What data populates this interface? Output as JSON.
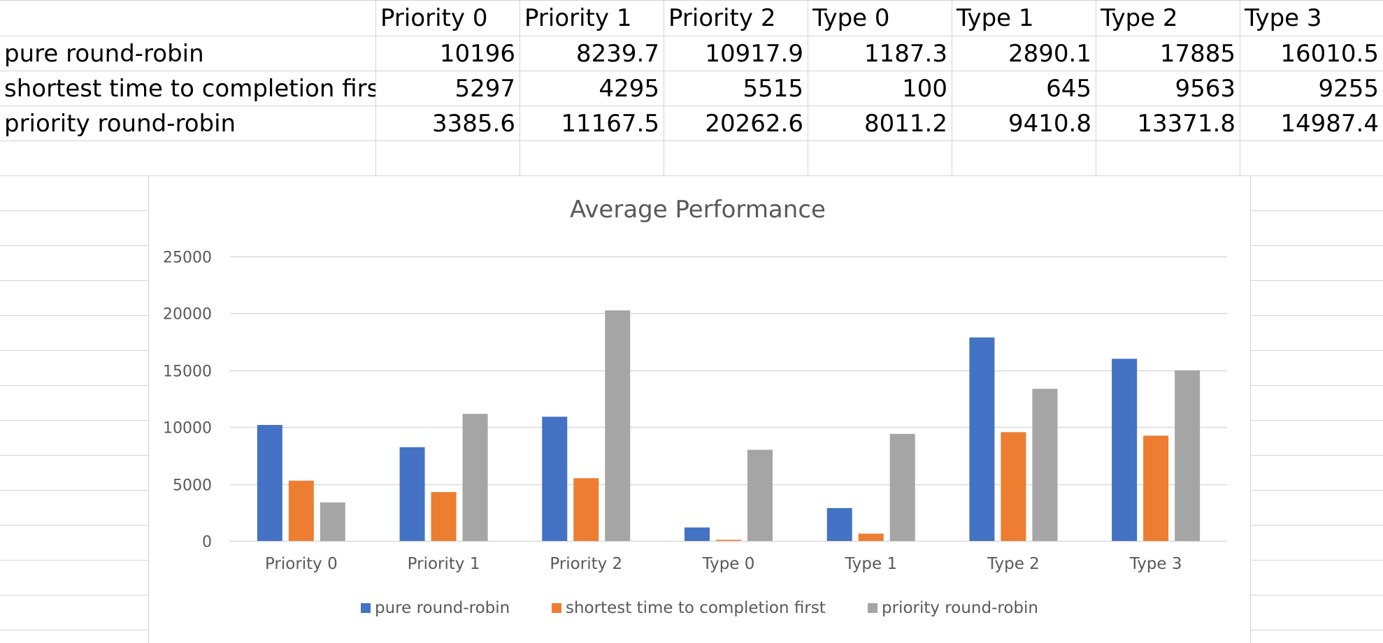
{
  "table": {
    "headers": [
      "Priority 0",
      "Priority 1",
      "Priority 2",
      "Type 0",
      "Type 1",
      "Type 2",
      "Type 3"
    ],
    "rows": [
      {
        "label": "pure round-robin",
        "values": [
          "10196",
          "8239.7",
          "10917.9",
          "1187.3",
          "2890.1",
          "17885",
          "16010.5"
        ]
      },
      {
        "label": "shortest time to completion first",
        "values": [
          "5297",
          "4295",
          "5515",
          "100",
          "645",
          "9563",
          "9255"
        ]
      },
      {
        "label": "priority round-robin",
        "values": [
          "3385.6",
          "11167.5",
          "20262.6",
          "8011.2",
          "9410.8",
          "13371.8",
          "14987.4"
        ]
      }
    ]
  },
  "chart_data": {
    "type": "bar",
    "title": "Average Performance",
    "categories": [
      "Priority 0",
      "Priority 1",
      "Priority 2",
      "Type 0",
      "Type 1",
      "Type 2",
      "Type 3"
    ],
    "series": [
      {
        "name": "pure round-robin",
        "color": "#4472C4",
        "values": [
          10196,
          8239.7,
          10917.9,
          1187.3,
          2890.1,
          17885,
          16010.5
        ]
      },
      {
        "name": "shortest time to completion first",
        "color": "#ED7D31",
        "values": [
          5297,
          4295,
          5515,
          100,
          645,
          9563,
          9255
        ]
      },
      {
        "name": "priority round-robin",
        "color": "#A5A5A5",
        "values": [
          3385.6,
          11167.5,
          20262.6,
          8011.2,
          9410.8,
          13371.8,
          14987.4
        ]
      }
    ],
    "yticks": [
      "0",
      "5000",
      "10000",
      "15000",
      "20000",
      "25000"
    ],
    "ylim": [
      0,
      25000
    ],
    "grid": true,
    "legend_position": "bottom"
  }
}
